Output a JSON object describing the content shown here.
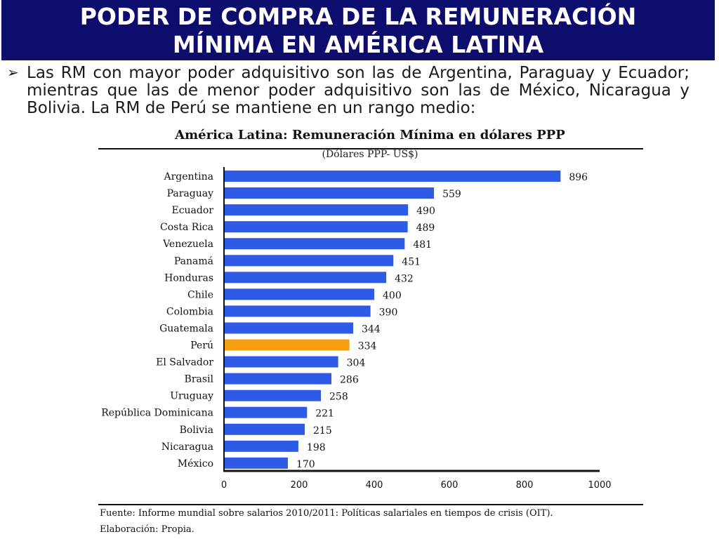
{
  "header": {
    "title_line1": "PODER DE COMPRA DE LA REMUNERACIÓN",
    "title_line2": "MÍNIMA EN AMÉRICA LATINA"
  },
  "bullet": {
    "marker": "➢",
    "text": "Las RM con mayor poder adquisitivo son las de Argentina, Paraguay y Ecuador; mientras que las de menor poder adquisitivo son las de México, Nicaragua y Bolivia. La RM de Perú se mantiene en un rango medio:"
  },
  "chart_data": {
    "type": "bar",
    "orientation": "horizontal",
    "title": "América Latina: Remuneración Mínima en dólares PPP",
    "subtitle": "(Dólares PPP- US$)",
    "categories": [
      "Argentina",
      "Paraguay",
      "Ecuador",
      "Costa Rica",
      "Venezuela",
      "Panamá",
      "Honduras",
      "Chile",
      "Colombia",
      "Guatemala",
      "Perú",
      "El Salvador",
      "Brasil",
      "Uruguay",
      "República Dominicana",
      "Bolivia",
      "Nicaragua",
      "México"
    ],
    "values": [
      896,
      559,
      490,
      489,
      481,
      451,
      432,
      400,
      390,
      344,
      334,
      304,
      286,
      258,
      221,
      215,
      198,
      170
    ],
    "xlim": [
      0,
      1000
    ],
    "xticks": [
      0,
      200,
      400,
      600,
      800,
      1000
    ],
    "grid": false,
    "highlight_category": "Perú",
    "colors": {
      "bar": "#2e5be6",
      "highlight": "#f7a00f"
    }
  },
  "footer": {
    "source": "Fuente: Informe mundial sobre salarios 2010/2011: Políticas salariales en tiempos de crisis (OIT).",
    "credit": "Elaboración: Propia."
  }
}
